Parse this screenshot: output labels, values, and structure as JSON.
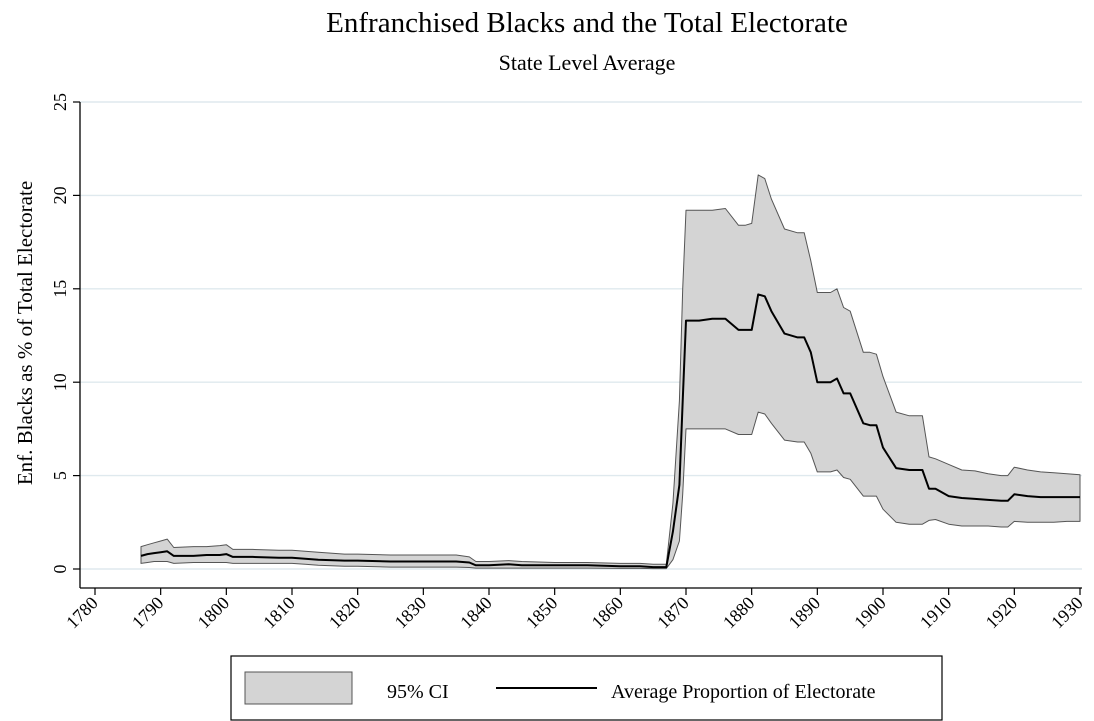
{
  "chart_data": {
    "type": "area",
    "title": "Enfranchised Blacks and the Total Electorate",
    "subtitle": "State Level Average",
    "xlabel": "",
    "ylabel": "Enf. Blacks as % of Total Electorate",
    "xlim": [
      1780,
      1930
    ],
    "ylim": [
      0,
      25
    ],
    "x_ticks": [
      1780,
      1790,
      1800,
      1810,
      1820,
      1830,
      1840,
      1850,
      1860,
      1870,
      1880,
      1890,
      1900,
      1910,
      1920,
      1930
    ],
    "y_ticks": [
      0,
      5,
      10,
      15,
      20,
      25
    ],
    "grid": "horizontal",
    "legend_position": "bottom",
    "colors": {
      "band_fill": "#d4d4d4",
      "band_stroke": "#555555",
      "line": "#000000",
      "grid": "#dfe9ee"
    },
    "series": [
      {
        "name": "Average Proportion of Electorate",
        "style": "line",
        "x": [
          1787,
          1788,
          1789,
          1790,
          1791,
          1792,
          1795,
          1797,
          1799,
          1800,
          1801,
          1804,
          1808,
          1810,
          1812,
          1814,
          1818,
          1820,
          1825,
          1830,
          1835,
          1837,
          1838,
          1840,
          1843,
          1845,
          1850,
          1855,
          1860,
          1863,
          1865,
          1867,
          1868,
          1869,
          1869.5,
          1870,
          1872,
          1874,
          1876,
          1878,
          1879,
          1880,
          1881,
          1882,
          1883,
          1885,
          1887,
          1888,
          1889,
          1890,
          1892,
          1893,
          1894,
          1895,
          1897,
          1898,
          1899,
          1900,
          1902,
          1904,
          1906,
          1907,
          1908,
          1910,
          1912,
          1914,
          1916,
          1918,
          1919,
          1920,
          1922,
          1924,
          1926,
          1928,
          1930
        ],
        "values": [
          0.7,
          0.8,
          0.85,
          0.9,
          0.95,
          0.7,
          0.7,
          0.75,
          0.75,
          0.8,
          0.65,
          0.65,
          0.6,
          0.6,
          0.55,
          0.5,
          0.45,
          0.45,
          0.4,
          0.4,
          0.4,
          0.35,
          0.2,
          0.2,
          0.25,
          0.2,
          0.2,
          0.2,
          0.15,
          0.15,
          0.1,
          0.1,
          2.0,
          4.5,
          9.0,
          13.3,
          13.3,
          13.4,
          13.4,
          12.8,
          12.8,
          12.8,
          14.7,
          14.6,
          13.8,
          12.6,
          12.4,
          12.4,
          11.6,
          10.0,
          10.0,
          10.2,
          9.4,
          9.4,
          7.8,
          7.7,
          7.7,
          6.5,
          5.4,
          5.3,
          5.3,
          4.3,
          4.3,
          3.9,
          3.8,
          3.75,
          3.7,
          3.65,
          3.65,
          4.0,
          3.9,
          3.85,
          3.85,
          3.85,
          3.85
        ]
      },
      {
        "name": "95% CI",
        "style": "band",
        "x": [
          1787,
          1788,
          1789,
          1790,
          1791,
          1792,
          1795,
          1797,
          1799,
          1800,
          1801,
          1804,
          1808,
          1810,
          1812,
          1814,
          1818,
          1820,
          1825,
          1830,
          1835,
          1837,
          1838,
          1840,
          1843,
          1845,
          1850,
          1855,
          1860,
          1863,
          1865,
          1867,
          1868,
          1869,
          1869.5,
          1870,
          1872,
          1874,
          1876,
          1878,
          1879,
          1880,
          1881,
          1882,
          1883,
          1885,
          1887,
          1888,
          1889,
          1890,
          1892,
          1893,
          1894,
          1895,
          1897,
          1898,
          1899,
          1900,
          1902,
          1904,
          1906,
          1907,
          1908,
          1910,
          1912,
          1914,
          1916,
          1918,
          1919,
          1920,
          1922,
          1924,
          1926,
          1928,
          1930
        ],
        "upper": [
          1.2,
          1.3,
          1.4,
          1.5,
          1.6,
          1.15,
          1.2,
          1.2,
          1.25,
          1.3,
          1.05,
          1.05,
          1.0,
          1.0,
          0.95,
          0.9,
          0.8,
          0.8,
          0.75,
          0.75,
          0.75,
          0.65,
          0.4,
          0.4,
          0.45,
          0.4,
          0.35,
          0.35,
          0.3,
          0.3,
          0.25,
          0.25,
          3.5,
          9.0,
          15.0,
          19.2,
          19.2,
          19.2,
          19.3,
          18.4,
          18.4,
          18.5,
          21.1,
          20.9,
          19.8,
          18.2,
          18.0,
          18.0,
          16.5,
          14.8,
          14.8,
          15.0,
          14.0,
          13.8,
          11.6,
          11.6,
          11.5,
          10.3,
          8.4,
          8.2,
          8.2,
          6.0,
          5.9,
          5.6,
          5.3,
          5.25,
          5.1,
          5.0,
          5.0,
          5.45,
          5.3,
          5.2,
          5.15,
          5.1,
          5.05
        ],
        "lower": [
          0.3,
          0.35,
          0.4,
          0.4,
          0.4,
          0.3,
          0.35,
          0.35,
          0.35,
          0.35,
          0.3,
          0.3,
          0.3,
          0.3,
          0.25,
          0.2,
          0.15,
          0.15,
          0.1,
          0.1,
          0.1,
          0.08,
          0.05,
          0.05,
          0.05,
          0.05,
          0.05,
          0.05,
          0.03,
          0.03,
          0.02,
          0.02,
          0.5,
          1.5,
          4.0,
          7.5,
          7.5,
          7.5,
          7.5,
          7.2,
          7.2,
          7.2,
          8.4,
          8.3,
          7.8,
          6.9,
          6.8,
          6.8,
          6.2,
          5.2,
          5.2,
          5.3,
          4.9,
          4.8,
          3.9,
          3.9,
          3.9,
          3.2,
          2.5,
          2.4,
          2.4,
          2.6,
          2.65,
          2.4,
          2.3,
          2.3,
          2.3,
          2.25,
          2.25,
          2.55,
          2.5,
          2.5,
          2.5,
          2.55,
          2.55
        ]
      }
    ]
  }
}
